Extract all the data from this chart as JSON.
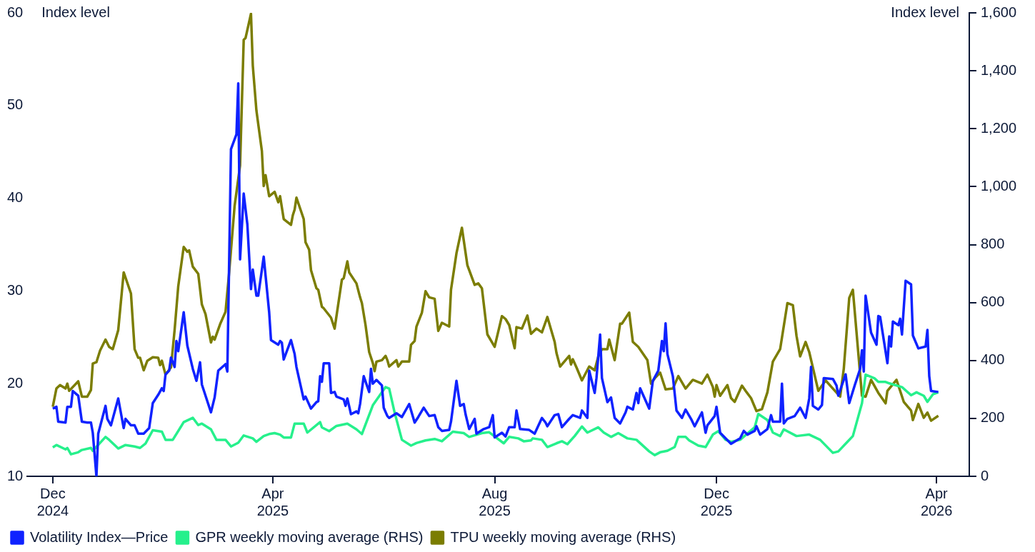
{
  "chart_data": {
    "type": "line",
    "ylabel": "Index level",
    "y2label": "Index level",
    "xlim": [
      "2024-11-17",
      "2026-04-19"
    ],
    "xticks": [
      {
        "value": "2024-12-01",
        "label": "Dec 2024"
      },
      {
        "value": "2025-04-01",
        "label": "Apr 2025"
      },
      {
        "value": "2025-08-01",
        "label": "Aug 2025"
      },
      {
        "value": "2025-12-01",
        "label": "Dec 2025"
      },
      {
        "value": "2026-04-01",
        "label": "Apr 2026"
      }
    ],
    "ylim": [
      10,
      60
    ],
    "yticks": [
      10,
      20,
      30,
      40,
      50,
      60
    ],
    "y2lim": [
      0,
      1600
    ],
    "y2ticks": [
      0,
      200,
      400,
      600,
      800,
      {
        "value": 1000,
        "label": "1,000"
      },
      {
        "value": 1200,
        "label": "1,200"
      },
      {
        "value": 1400,
        "label": "1,400"
      },
      {
        "value": 1600,
        "label": "1,600"
      }
    ],
    "legend": "bottom",
    "marker": "none",
    "series": [
      {
        "name": "Volatility Index—Price",
        "color": "#0f22ff",
        "x": [
          "2024-12-01",
          "2024-12-03",
          "2024-12-04",
          "2024-12-08",
          "2024-12-09",
          "2024-12-11",
          "2024-12-12",
          "2024-12-15",
          "2024-12-17",
          "2024-12-20",
          "2024-12-22",
          "2024-12-23",
          "2024-12-25",
          "2024-12-26",
          "2024-12-30",
          "2024-12-31",
          "2025-01-02",
          "2025-01-06",
          "2025-01-09",
          "2025-01-10",
          "2025-01-13",
          "2025-01-15",
          "2025-01-17",
          "2025-01-20",
          "2025-01-23",
          "2025-01-25",
          "2025-01-28",
          "2025-01-30",
          "2025-01-31",
          "2025-02-01",
          "2025-02-03",
          "2025-02-04",
          "2025-02-06",
          "2025-02-07",
          "2025-02-08",
          "2025-02-11",
          "2025-02-13",
          "2025-02-16",
          "2025-02-18",
          "2025-02-20",
          "2025-02-21",
          "2025-02-26",
          "2025-02-28",
          "2025-03-02",
          "2025-03-06",
          "2025-03-07",
          "2025-03-09",
          "2025-03-12",
          "2025-03-13",
          "2025-03-14",
          "2025-03-16",
          "2025-03-18",
          "2025-03-20",
          "2025-03-21",
          "2025-03-23",
          "2025-03-24",
          "2025-03-27",
          "2025-03-30",
          "2025-03-31",
          "2025-04-04",
          "2025-04-05",
          "2025-04-06",
          "2025-04-07",
          "2025-04-11",
          "2025-04-13",
          "2025-04-14",
          "2025-04-18",
          "2025-04-19",
          "2025-04-22",
          "2025-04-25",
          "2025-04-26",
          "2025-04-27",
          "2025-04-28",
          "2025-04-29",
          "2025-05-02",
          "2025-05-03",
          "2025-05-05",
          "2025-05-06",
          "2025-05-10",
          "2025-05-11",
          "2025-05-12",
          "2025-05-14",
          "2025-05-17",
          "2025-05-18",
          "2025-05-19",
          "2025-05-21",
          "2025-05-24",
          "2025-05-25",
          "2025-05-26",
          "2025-05-28",
          "2025-05-31",
          "2025-06-01",
          "2025-06-03",
          "2025-06-04",
          "2025-06-08",
          "2025-06-11",
          "2025-06-15",
          "2025-06-18",
          "2025-06-20",
          "2025-06-23",
          "2025-06-26",
          "2025-06-29",
          "2025-07-01",
          "2025-07-03",
          "2025-07-07",
          "2025-07-08",
          "2025-07-11",
          "2025-07-13",
          "2025-07-15",
          "2025-07-16",
          "2025-07-18",
          "2025-07-21",
          "2025-07-22",
          "2025-07-26",
          "2025-07-29",
          "2025-07-31",
          "2025-08-01",
          "2025-08-05",
          "2025-08-07",
          "2025-08-09",
          "2025-08-12",
          "2025-08-13",
          "2025-08-15",
          "2025-08-20",
          "2025-08-23",
          "2025-08-27",
          "2025-08-29",
          "2025-08-30",
          "2025-09-03",
          "2025-09-05",
          "2025-09-07",
          "2025-09-11",
          "2025-09-13",
          "2025-09-17",
          "2025-09-18",
          "2025-09-21",
          "2025-09-22",
          "2025-09-25",
          "2025-09-26",
          "2025-09-28",
          "2025-09-29",
          "2025-10-02",
          "2025-10-04",
          "2025-10-06",
          "2025-10-09",
          "2025-10-12",
          "2025-10-13",
          "2025-10-16",
          "2025-10-18",
          "2025-10-19",
          "2025-10-20",
          "2025-10-25",
          "2025-10-27",
          "2025-10-30",
          "2025-11-01",
          "2025-11-02",
          "2025-11-03",
          "2025-11-04",
          "2025-11-07",
          "2025-11-09",
          "2025-11-12",
          "2025-11-14",
          "2025-11-17",
          "2025-11-19",
          "2025-11-23",
          "2025-11-25",
          "2025-11-26",
          "2025-11-30",
          "2025-12-01",
          "2025-12-03",
          "2025-12-09",
          "2025-12-14",
          "2025-12-16",
          "2025-12-18",
          "2025-12-22",
          "2025-12-23",
          "2025-12-25",
          "2025-12-29",
          "2025-12-31",
          "2026-01-01",
          "2026-01-05",
          "2026-01-06",
          "2026-01-07",
          "2026-01-09",
          "2026-01-13",
          "2026-01-16",
          "2026-01-19",
          "2026-01-21",
          "2026-01-22",
          "2026-01-23",
          "2026-01-26",
          "2026-01-28",
          "2026-01-29",
          "2026-02-03",
          "2026-02-05",
          "2026-02-06",
          "2026-02-10",
          "2026-02-12",
          "2026-02-15",
          "2026-02-18",
          "2026-02-19",
          "2026-02-20",
          "2026-02-21",
          "2026-02-24",
          "2026-02-27",
          "2026-02-28",
          "2026-03-01",
          "2026-03-05",
          "2026-03-06",
          "2026-03-07",
          "2026-03-08",
          "2026-03-11",
          "2026-03-12",
          "2026-03-13",
          "2026-03-15",
          "2026-03-18",
          "2026-03-19",
          "2026-03-22",
          "2026-03-26",
          "2026-03-27",
          "2026-03-28",
          "2026-03-29",
          "2026-04-02"
        ],
        "values": [
          17.3,
          17.5,
          15.9,
          15.8,
          17.5,
          17.5,
          19.2,
          18.7,
          15.9,
          15.8,
          15.8,
          14.7,
          10.0,
          14.6,
          17.6,
          16.2,
          15.5,
          18.4,
          15.2,
          16.2,
          15.5,
          15.5,
          14.6,
          14.6,
          15.2,
          17.9,
          18.8,
          19.5,
          19.2,
          21.0,
          21.4,
          22.8,
          21.8,
          24.6,
          23.5,
          27.7,
          24.1,
          21.6,
          20.3,
          22.3,
          19.9,
          16.9,
          18.5,
          21.4,
          22.1,
          21.3,
          45.3,
          46.9,
          52.4,
          33.4,
          40.5,
          37.2,
          30.2,
          32.3,
          29.5,
          29.5,
          33.7,
          27.7,
          24.7,
          24.2,
          24.6,
          24.4,
          22.6,
          24.7,
          23.2,
          21.8,
          18.3,
          18.6,
          17.3,
          18.0,
          18.1,
          20.8,
          20.2,
          22.2,
          22.2,
          19.0,
          19.1,
          18.6,
          18.3,
          17.6,
          18.4,
          16.7,
          17.0,
          16.8,
          17.8,
          20.8,
          19.1,
          21.6,
          20.0,
          20.4,
          19.8,
          17.4,
          16.5,
          16.3,
          16.8,
          16.4,
          17.8,
          15.8,
          16.4,
          17.4,
          16.5,
          16.6,
          15.3,
          14.9,
          15.0,
          15.9,
          20.3,
          17.6,
          17.8,
          16.7,
          15.1,
          16.2,
          14.6,
          15.1,
          15.3,
          16.6,
          14.2,
          14.7,
          14.3,
          15.3,
          15.3,
          17.1,
          15.1,
          15.0,
          14.6,
          16.3,
          15.8,
          15.4,
          16.6,
          16.7,
          15.3,
          16.2,
          16.6,
          16.3,
          17.1,
          16.3,
          21.4,
          19.0,
          20.6,
          25.3,
          20.6,
          18.0,
          18.5,
          16.3,
          15.7,
          16.9,
          17.5,
          17.2,
          19.0,
          17.9,
          19.5,
          17.3,
          20.3,
          21.4,
          24.6,
          23.5,
          26.5,
          23.2,
          20.8,
          17.1,
          16.3,
          17.2,
          16.2,
          15.4,
          16.9,
          14.7,
          15.5,
          16.5,
          17.5,
          14.7,
          13.5,
          14.1,
          14.9,
          14.5,
          14.9,
          15.4,
          14.5,
          15.1,
          16.6,
          15.9,
          15.9,
          20.0,
          15.7,
          16.2,
          16.5,
          17.4,
          16.3,
          18.4,
          21.8,
          17.6,
          17.2,
          17.7,
          20.6,
          20.5,
          19.8,
          18.7,
          21.0,
          17.9,
          19.8,
          21.6,
          23.6,
          21.3,
          29.5,
          25.5,
          24.2,
          27.3,
          27.2,
          22.2,
          25.1,
          24.0,
          26.7,
          26.3,
          27.0,
          25.3,
          31.1,
          30.7,
          25.2,
          23.8,
          24.0,
          25.8,
          20.8,
          19.2,
          19.1
        ]
      },
      {
        "name": "GPR weekly moving average (RHS)",
        "color": "#26f08c",
        "axis": "y2",
        "x": [
          "2024-12-01",
          "2024-12-03",
          "2024-12-08",
          "2024-12-09",
          "2024-12-11",
          "2024-12-15",
          "2024-12-17",
          "2024-12-22",
          "2024-12-23",
          "2024-12-30",
          "2025-01-01",
          "2025-01-06",
          "2025-01-10",
          "2025-01-15",
          "2025-01-18",
          "2025-01-21",
          "2025-01-25",
          "2025-01-30",
          "2025-02-01",
          "2025-02-05",
          "2025-02-11",
          "2025-02-16",
          "2025-02-19",
          "2025-02-21",
          "2025-02-26",
          "2025-03-01",
          "2025-03-06",
          "2025-03-09",
          "2025-03-13",
          "2025-03-16",
          "2025-03-21",
          "2025-03-23",
          "2025-03-27",
          "2025-03-30",
          "2025-04-02",
          "2025-04-05",
          "2025-04-07",
          "2025-04-11",
          "2025-04-13",
          "2025-04-18",
          "2025-04-20",
          "2025-04-27",
          "2025-04-28",
          "2025-05-02",
          "2025-05-06",
          "2025-05-12",
          "2025-05-17",
          "2025-05-20",
          "2025-05-26",
          "2025-06-02",
          "2025-06-04",
          "2025-06-07",
          "2025-06-11",
          "2025-06-16",
          "2025-06-19",
          "2025-06-24",
          "2025-06-29",
          "2025-07-03",
          "2025-07-09",
          "2025-07-15",
          "2025-07-18",
          "2025-07-25",
          "2025-07-29",
          "2025-08-06",
          "2025-08-09",
          "2025-08-14",
          "2025-08-17",
          "2025-08-21",
          "2025-08-22",
          "2025-08-27",
          "2025-08-30",
          "2025-09-04",
          "2025-09-07",
          "2025-09-10",
          "2025-09-14",
          "2025-09-18",
          "2025-09-21",
          "2025-09-27",
          "2025-09-30",
          "2025-10-04",
          "2025-10-08",
          "2025-10-13",
          "2025-10-18",
          "2025-10-25",
          "2025-10-28",
          "2025-10-31",
          "2025-11-04",
          "2025-11-08",
          "2025-11-10",
          "2025-11-14",
          "2025-11-16",
          "2025-11-21",
          "2025-11-25",
          "2025-11-29",
          "2025-12-02",
          "2025-12-06",
          "2025-12-09",
          "2025-12-14",
          "2025-12-22",
          "2025-12-24",
          "2025-12-29",
          "2026-01-01",
          "2026-01-05",
          "2026-01-07",
          "2026-01-14",
          "2026-01-21",
          "2026-01-27",
          "2026-02-03",
          "2026-02-06",
          "2026-02-11",
          "2026-02-14",
          "2026-02-19",
          "2026-02-21",
          "2026-02-26",
          "2026-02-28",
          "2026-03-04",
          "2026-03-06",
          "2026-03-13",
          "2026-03-18",
          "2026-03-21",
          "2026-03-25",
          "2026-03-27",
          "2026-03-30",
          "2026-04-02"
        ],
        "values": [
          100,
          108,
          93,
          98,
          76,
          83,
          91,
          98,
          88,
          136,
          126,
          96,
          108,
          103,
          98,
          113,
          159,
          154,
          126,
          126,
          187,
          202,
          177,
          182,
          162,
          126,
          126,
          103,
          116,
          141,
          131,
          119,
          139,
          146,
          149,
          144,
          134,
          134,
          182,
          182,
          151,
          187,
          169,
          156,
          174,
          182,
          162,
          146,
          245,
          308,
          303,
          220,
          126,
          106,
          115,
          124,
          129,
          121,
          154,
          149,
          136,
          149,
          152,
          114,
          136,
          131,
          121,
          124,
          131,
          126,
          101,
          114,
          121,
          111,
          139,
          172,
          151,
          169,
          151,
          136,
          149,
          131,
          126,
          86,
          73,
          83,
          88,
          101,
          136,
          136,
          124,
          106,
          101,
          144,
          156,
          126,
          119,
          126,
          169,
          215,
          194,
          151,
          139,
          162,
          139,
          144,
          126,
          81,
          86,
          119,
          139,
          252,
          351,
          338,
          326,
          326,
          321,
          308,
          280,
          290,
          278,
          257,
          283,
          290
        ]
      },
      {
        "name": "TPU weekly moving average (RHS)",
        "color": "#7b7d00",
        "axis": "y2",
        "x": [
          "2024-12-01",
          "2024-12-03",
          "2024-12-05",
          "2024-12-08",
          "2024-12-09",
          "2024-12-10",
          "2024-12-15",
          "2024-12-17",
          "2024-12-20",
          "2024-12-22",
          "2024-12-23",
          "2024-12-25",
          "2024-12-27",
          "2024-12-30",
          "2025-01-01",
          "2025-01-03",
          "2025-01-06",
          "2025-01-09",
          "2025-01-13",
          "2025-01-15",
          "2025-01-17",
          "2025-01-18",
          "2025-01-20",
          "2025-01-22",
          "2025-01-25",
          "2025-01-28",
          "2025-01-29",
          "2025-01-30",
          "2025-02-01",
          "2025-02-04",
          "2025-02-06",
          "2025-02-08",
          "2025-02-11",
          "2025-02-13",
          "2025-02-14",
          "2025-02-16",
          "2025-02-19",
          "2025-02-21",
          "2025-02-23",
          "2025-02-26",
          "2025-02-27",
          "2025-02-28",
          "2025-03-03",
          "2025-03-06",
          "2025-03-08",
          "2025-03-11",
          "2025-03-14",
          "2025-03-16",
          "2025-03-17",
          "2025-03-20",
          "2025-03-21",
          "2025-03-23",
          "2025-03-26",
          "2025-03-27",
          "2025-03-28",
          "2025-03-30",
          "2025-04-02",
          "2025-04-04",
          "2025-04-05",
          "2025-04-07",
          "2025-04-11",
          "2025-04-12",
          "2025-04-13",
          "2025-04-14",
          "2025-04-18",
          "2025-04-19",
          "2025-04-21",
          "2025-04-22",
          "2025-04-25",
          "2025-04-26",
          "2025-04-28",
          "2025-04-29",
          "2025-05-03",
          "2025-05-05",
          "2025-05-09",
          "2025-05-10",
          "2025-05-12",
          "2025-05-13",
          "2025-05-17",
          "2025-05-19",
          "2025-05-20",
          "2025-05-22",
          "2025-05-24",
          "2025-05-26",
          "2025-05-27",
          "2025-05-28",
          "2025-05-31",
          "2025-06-02",
          "2025-06-03",
          "2025-06-04",
          "2025-06-08",
          "2025-06-09",
          "2025-06-11",
          "2025-06-15",
          "2025-06-16",
          "2025-06-18",
          "2025-06-19",
          "2025-06-22",
          "2025-06-24",
          "2025-06-26",
          "2025-06-29",
          "2025-07-01",
          "2025-07-03",
          "2025-07-07",
          "2025-07-08",
          "2025-07-11",
          "2025-07-14",
          "2025-07-17",
          "2025-07-21",
          "2025-07-23",
          "2025-07-25",
          "2025-07-28",
          "2025-08-01",
          "2025-08-05",
          "2025-08-07",
          "2025-08-09",
          "2025-08-12",
          "2025-08-13",
          "2025-08-16",
          "2025-08-19",
          "2025-08-21",
          "2025-08-24",
          "2025-08-27",
          "2025-08-30",
          "2025-09-03",
          "2025-09-04",
          "2025-09-06",
          "2025-09-11",
          "2025-09-12",
          "2025-09-13",
          "2025-09-15",
          "2025-09-18",
          "2025-09-22",
          "2025-09-25",
          "2025-09-27",
          "2025-09-29",
          "2025-10-02",
          "2025-10-03",
          "2025-10-06",
          "2025-10-09",
          "2025-10-10",
          "2025-10-14",
          "2025-10-16",
          "2025-10-19",
          "2025-10-24",
          "2025-10-26",
          "2025-10-28",
          "2025-10-31",
          "2025-11-03",
          "2025-11-07",
          "2025-11-10",
          "2025-11-14",
          "2025-11-18",
          "2025-11-23",
          "2025-11-26",
          "2025-11-29",
          "2025-11-30",
          "2025-12-01",
          "2025-12-03",
          "2025-12-07",
          "2025-12-09",
          "2025-12-11",
          "2025-12-15",
          "2025-12-17",
          "2025-12-20",
          "2025-12-23",
          "2025-12-26",
          "2025-12-29",
          "2026-01-01",
          "2026-01-05",
          "2026-01-09",
          "2026-01-12",
          "2026-01-14",
          "2026-01-16",
          "2026-01-19",
          "2026-01-21",
          "2026-01-26",
          "2026-01-30",
          "2026-02-03",
          "2026-02-07",
          "2026-02-09",
          "2026-02-12",
          "2026-02-14",
          "2026-02-19",
          "2026-02-21",
          "2026-02-24",
          "2026-02-28",
          "2026-03-04",
          "2026-03-05",
          "2026-03-10",
          "2026-03-14",
          "2026-03-18",
          "2026-03-19",
          "2026-03-22",
          "2026-03-25",
          "2026-03-27",
          "2026-03-29",
          "2026-04-02"
        ],
        "values": [
          240,
          303,
          315,
          303,
          320,
          295,
          328,
          275,
          275,
          298,
          389,
          394,
          434,
          472,
          447,
          439,
          505,
          704,
          631,
          439,
          409,
          409,
          366,
          399,
          411,
          409,
          384,
          399,
          351,
          376,
          505,
          656,
          792,
          775,
          780,
          724,
          699,
          593,
          560,
          462,
          482,
          472,
          525,
          568,
          704,
          934,
          1073,
          1507,
          1513,
          1597,
          1418,
          1262,
          1123,
          1002,
          1040,
          967,
          982,
          946,
          967,
          888,
          868,
          901,
          921,
          962,
          888,
          808,
          782,
          712,
          649,
          644,
          585,
          580,
          548,
          510,
          679,
          684,
          742,
          704,
          666,
          618,
          598,
          522,
          429,
          391,
          363,
          396,
          401,
          416,
          401,
          379,
          401,
          379,
          396,
          396,
          454,
          467,
          517,
          565,
          639,
          618,
          613,
          502,
          530,
          517,
          644,
          770,
          858,
          729,
          661,
          666,
          649,
          490,
          447,
          553,
          543,
          522,
          442,
          515,
          510,
          555,
          492,
          510,
          497,
          550,
          464,
          426,
          379,
          416,
          386,
          404,
          376,
          331,
          379,
          366,
          414,
          439,
          439,
          472,
          401,
          527,
          527,
          565,
          464,
          447,
          401,
          320,
          338,
          358,
          300,
          303,
          346,
          303,
          333,
          320,
          351,
          308,
          275,
          315,
          278,
          315,
          270,
          257,
          313,
          295,
          270,
          225,
          232,
          290,
          396,
          439,
          598,
          591,
          485,
          414,
          464,
          429,
          295,
          331,
          303,
          275,
          371,
          616,
          644,
          278,
          275,
          333,
          288,
          252,
          295,
          333,
          257,
          227,
          194,
          250,
          202,
          220,
          192,
          209
        ]
      }
    ]
  }
}
